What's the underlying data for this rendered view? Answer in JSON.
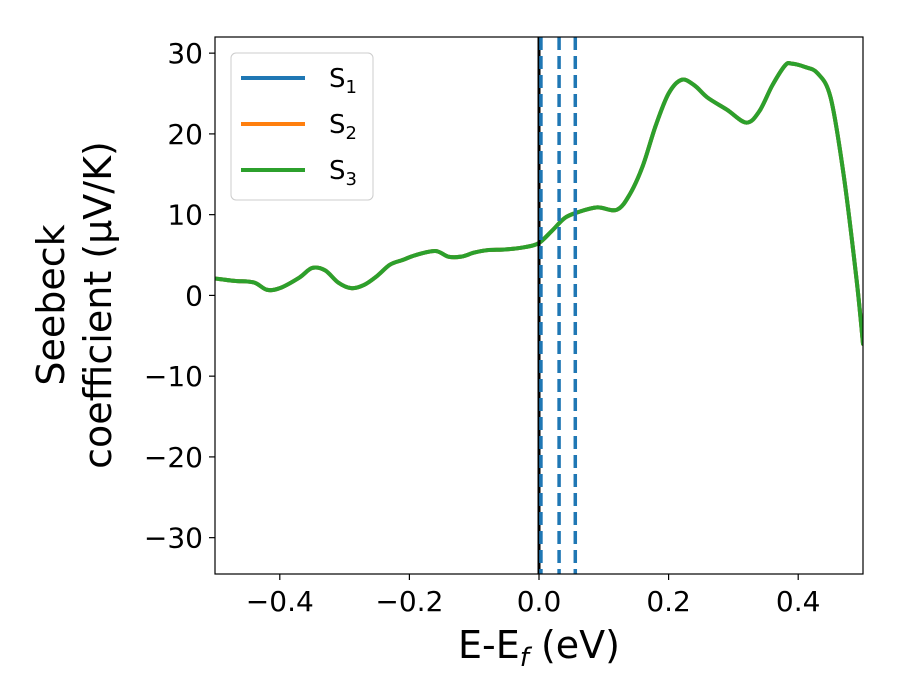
{
  "chart_data": {
    "type": "line",
    "xlabel": "E-E_f (eV)",
    "xlabel_main": "E-E",
    "xlabel_sub": "f",
    "xlabel_tail": " (eV)",
    "ylabel_line1": "Seebeck",
    "ylabel_line2": "coefficient  (μV/K)",
    "xlim": [
      -0.5,
      0.5
    ],
    "ylim": [
      -34.5,
      32
    ],
    "xticks": [
      -0.4,
      -0.2,
      0.0,
      0.2,
      0.4
    ],
    "xtick_labels": [
      "−0.4",
      "−0.2",
      "0.0",
      "0.2",
      "0.4"
    ],
    "yticks": [
      30,
      20,
      10,
      0,
      -10,
      -20,
      -30
    ],
    "ytick_labels": [
      "30",
      "20",
      "10",
      "0",
      "−10",
      "−20",
      "−30"
    ],
    "grid": false,
    "legend_position": "top-left",
    "series": [
      {
        "name": "S1",
        "label_main": "S",
        "label_sub": "1",
        "color": "#1f77b4"
      },
      {
        "name": "S2",
        "label_main": "S",
        "label_sub": "2",
        "color": "#ff7f0e"
      },
      {
        "name": "S3",
        "label_main": "S",
        "label_sub": "3",
        "color": "#2ca02c"
      }
    ],
    "x": [
      -0.5,
      -0.47,
      -0.44,
      -0.42,
      -0.4,
      -0.37,
      -0.35,
      -0.33,
      -0.31,
      -0.29,
      -0.27,
      -0.25,
      -0.23,
      -0.21,
      -0.19,
      -0.16,
      -0.14,
      -0.12,
      -0.1,
      -0.08,
      -0.05,
      -0.02,
      0.0,
      0.02,
      0.04,
      0.06,
      0.09,
      0.12,
      0.14,
      0.16,
      0.18,
      0.2,
      0.22,
      0.24,
      0.26,
      0.29,
      0.32,
      0.34,
      0.36,
      0.38,
      0.39,
      0.41,
      0.43,
      0.45,
      0.47,
      0.49,
      0.5
    ],
    "y": [
      2.1,
      1.8,
      1.6,
      0.7,
      0.9,
      2.2,
      3.4,
      3.1,
      1.6,
      0.9,
      1.3,
      2.4,
      3.8,
      4.4,
      5.0,
      5.5,
      4.8,
      4.8,
      5.3,
      5.6,
      5.7,
      6.0,
      6.5,
      8.0,
      9.6,
      10.3,
      10.9,
      10.6,
      12.5,
      16.0,
      21.0,
      25.0,
      26.7,
      26.0,
      24.5,
      23.0,
      21.4,
      22.8,
      26.0,
      28.5,
      28.7,
      28.3,
      27.5,
      24.5,
      15.0,
      2.0,
      -6.0
    ],
    "vertical_lines": [
      {
        "x": 0.0,
        "color": "#000000",
        "style": "solid"
      },
      {
        "x": 0.003,
        "color": "#1f77b4",
        "style": "dashed"
      },
      {
        "x": 0.031,
        "color": "#1f77b4",
        "style": "dashed"
      },
      {
        "x": 0.056,
        "color": "#1f77b4",
        "style": "dashed"
      }
    ]
  }
}
